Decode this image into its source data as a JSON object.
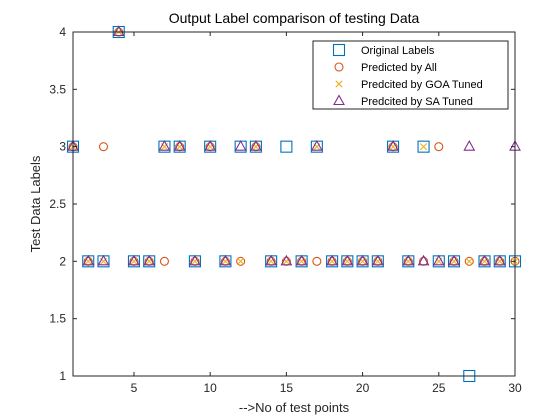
{
  "chart_data": {
    "type": "scatter",
    "title": "Output Label comparison of testing Data",
    "xlabel": "-->No of test points",
    "ylabel": "Test Data Labels",
    "xlim": [
      1,
      30
    ],
    "ylim": [
      1,
      4
    ],
    "xticks": [
      5,
      10,
      15,
      20,
      25,
      30
    ],
    "yticks": [
      1,
      1.5,
      2,
      2.5,
      3,
      3.5,
      4
    ],
    "ytick_labels": [
      "1",
      "1.5",
      "2",
      "2.5",
      "3",
      "3.5",
      "4"
    ],
    "grid": false,
    "legend_position": "top-right",
    "x": [
      1,
      2,
      3,
      4,
      5,
      6,
      7,
      8,
      9,
      10,
      11,
      12,
      13,
      14,
      15,
      16,
      17,
      18,
      19,
      20,
      21,
      22,
      23,
      24,
      25,
      26,
      27,
      28,
      29,
      30
    ],
    "series": [
      {
        "name": "Original Labels",
        "marker": "square",
        "color": "#0072bd",
        "values": [
          3,
          2,
          2,
          4,
          2,
          2,
          3,
          3,
          2,
          3,
          2,
          3,
          3,
          2,
          3,
          2,
          3,
          2,
          2,
          2,
          2,
          3,
          2,
          3,
          2,
          2,
          1,
          2,
          2,
          2
        ]
      },
      {
        "name": "Predicted by All",
        "marker": "circle",
        "color": "#d95319",
        "values": [
          3,
          2,
          3,
          4,
          2,
          2,
          2,
          3,
          2,
          3,
          2,
          2,
          3,
          2,
          2,
          2,
          2,
          2,
          2,
          2,
          2,
          3,
          2,
          2,
          3,
          2,
          2,
          2,
          2,
          2
        ]
      },
      {
        "name": "Predcited by GOA Tuned",
        "marker": "x",
        "color": "#edb120",
        "values": [
          3,
          2,
          2,
          4,
          2,
          2,
          3,
          3,
          2,
          3,
          2,
          2,
          3,
          2,
          2,
          2,
          3,
          2,
          2,
          2,
          2,
          3,
          2,
          3,
          2,
          2,
          2,
          2,
          2,
          2
        ]
      },
      {
        "name": "Predcited by SA Tuned",
        "marker": "triangle",
        "color": "#7e2f8e",
        "values": [
          3,
          2,
          2,
          4,
          2,
          2,
          3,
          3,
          2,
          3,
          2,
          3,
          3,
          2,
          2,
          2,
          3,
          2,
          2,
          2,
          2,
          3,
          2,
          2,
          2,
          2,
          3,
          2,
          2,
          3
        ]
      }
    ]
  }
}
